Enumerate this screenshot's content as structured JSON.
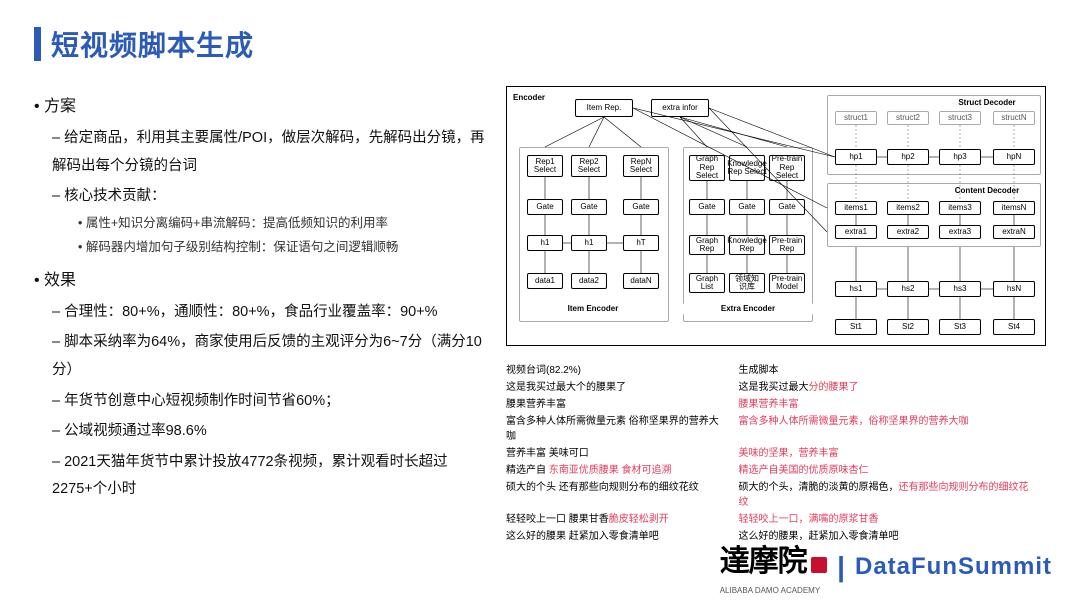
{
  "title": "短视频脚本生成",
  "left": {
    "plan_h": "方案",
    "plan_1": "给定商品，利用其主要属性/POI，做层次解码，先解码出分镜，再解码出每个分镜的台词",
    "plan_2": "核心技术贡献：",
    "plan_2a": "属性+知识分离编码+串流解码：提高低频知识的利用率",
    "plan_2b": "解码器内增加句子级别结构控制：保证语句之间逻辑顺畅",
    "eff_h": "效果",
    "eff_1": "合理性：80+%，通顺性：80+%，食品行业覆盖率：90+%",
    "eff_2": "脚本采纳率为64%，商家使用后反馈的主观评分为6~7分（满分10分）",
    "eff_3": "年货节创意中心短视频制作时间节省60%；",
    "eff_4": "公域视频通过率98.6%",
    "eff_5": "2021天猫年货节中累计投放4772条视频，累计观看时长超过2275+个小时"
  },
  "diagram": {
    "colors": {
      "border": "#000000",
      "light": "#aaaaaa",
      "bg": "#ffffff"
    },
    "labels": {
      "encoder": "Encoder",
      "item_encoder": "Item Encoder",
      "extra_encoder": "Extra Encoder",
      "struct_decoder": "Struct Decoder",
      "content_decoder": "Content Decoder",
      "item_rep": "Item Rep.",
      "extra_info": "extra infor",
      "rep1": "Rep1\nSelect",
      "rep2": "Rep2\nSelect",
      "repn": "RepN\nSelect",
      "gate": "Gate",
      "h": "h1",
      "h2": "h1",
      "h3": "hT",
      "data1": "data1",
      "data2": "data2",
      "datan": "dataN",
      "grs": "Graph\nRep\nSelect",
      "krs": "Knowledge\nRep\nSelect",
      "prs": "Pre-train\nRep\nSelect",
      "grap": "Graph\nRep",
      "know": "Knowledge\nRep",
      "pret": "Pre-train\nRep",
      "gl": "Graph\nList",
      "kb": "领域知\n识库",
      "pm": "Pre-train\nModel",
      "s1": "struct1",
      "s2": "struct2",
      "s3": "struct3",
      "sn": "structN",
      "hp1": "hp1",
      "hp2": "hp2",
      "hp3": "hp3",
      "hpn": "hpN",
      "it1": "items1",
      "it2": "items2",
      "it3": "items3",
      "itn": "itemsN",
      "ex1": "extra1",
      "ex2": "extra2",
      "ex3": "extra3",
      "exn": "extraN",
      "hs1": "hs1",
      "hs2": "hs2",
      "hs3": "hs3",
      "hsn": "hsN",
      "st1": "St1",
      "st2": "St2",
      "st3": "St3",
      "st4": "St4"
    }
  },
  "example": {
    "head_l": "视频台词(82.2%)",
    "head_r": "生成脚本",
    "rows": [
      {
        "l": {
          "p": "这是我买过最大个的腰果了"
        },
        "r": {
          "p": "这是我买过最大",
          "h": "分的腰果了"
        }
      },
      {
        "l": {
          "p": "腰果营养丰富"
        },
        "r": {
          "h": "腰果营养丰富"
        }
      },
      {
        "l": {
          "p": "富含多种人体所需微量元素 俗称坚果界的营养大咖"
        },
        "r": {
          "h": "富含多种人体所需微量元素，俗称坚果界的营养大咖"
        }
      },
      {
        "l": {
          "p": "营养丰富 美味可口"
        },
        "r": {
          "h": "美味的坚果，营养丰富"
        }
      },
      {
        "l": {
          "p": "精选产自 ",
          "h": "东南亚优质腰果 食材可追溯"
        },
        "r": {
          "h": "精选产自美国的优质原味杏仁"
        }
      },
      {
        "l": {
          "p": "硕大的个头 还有那些向规则分布的细纹花纹"
        },
        "r": {
          "p": "硕大的个头，清脆的淡黄的原褐色，",
          "h": "还有那些向规则分布的细纹花纹"
        }
      },
      {
        "l": {
          "h": "脆皮轻松剥开 ",
          "p": "轻轻咬上一口 腰果甘香"
        },
        "r": {
          "h": "轻轻咬上一口，满嘴的原浆甘香"
        }
      },
      {
        "l": {
          "p": "这么好的腰果 赶紧加入零食清单吧"
        },
        "r": {
          "p": "这么好的腰果，赶紧加入零食清单吧"
        }
      }
    ]
  },
  "footer": {
    "brand": "達摩院",
    "sub": "ALIBABA DAMO ACADEMY",
    "summit": "DataFunSummit"
  }
}
